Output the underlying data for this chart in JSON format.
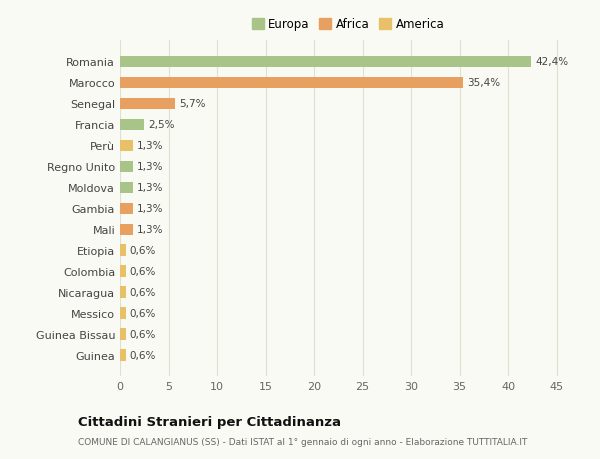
{
  "categories": [
    "Guinea",
    "Guinea Bissau",
    "Messico",
    "Nicaragua",
    "Colombia",
    "Etiopia",
    "Mali",
    "Gambia",
    "Moldova",
    "Regno Unito",
    "Perù",
    "Francia",
    "Senegal",
    "Marocco",
    "Romania"
  ],
  "values": [
    0.6,
    0.6,
    0.6,
    0.6,
    0.6,
    0.6,
    1.3,
    1.3,
    1.3,
    1.3,
    1.3,
    2.5,
    5.7,
    35.4,
    42.4
  ],
  "labels": [
    "0,6%",
    "0,6%",
    "0,6%",
    "0,6%",
    "0,6%",
    "0,6%",
    "1,3%",
    "1,3%",
    "1,3%",
    "1,3%",
    "1,3%",
    "2,5%",
    "5,7%",
    "35,4%",
    "42,4%"
  ],
  "colors": [
    "#e8c068",
    "#e8c068",
    "#e8c068",
    "#e8c068",
    "#e8c068",
    "#e8c068",
    "#e8a060",
    "#e8a060",
    "#a8c488",
    "#a8c488",
    "#e8c068",
    "#a8c488",
    "#e8a060",
    "#e8a060",
    "#a8c488"
  ],
  "legend_labels": [
    "Europa",
    "Africa",
    "America"
  ],
  "legend_colors": [
    "#a8c488",
    "#e8a060",
    "#e8c068"
  ],
  "title_main": "Cittadini Stranieri per Cittadinanza",
  "title_sub": "COMUNE DI CALANGIANUS (SS) - Dati ISTAT al 1° gennaio di ogni anno - Elaborazione TUTTITALIA.IT",
  "xlim": [
    0,
    47
  ],
  "xticks": [
    0,
    5,
    10,
    15,
    20,
    25,
    30,
    35,
    40,
    45
  ],
  "background_color": "#fafaf5",
  "grid_color": "#e0e0d0"
}
